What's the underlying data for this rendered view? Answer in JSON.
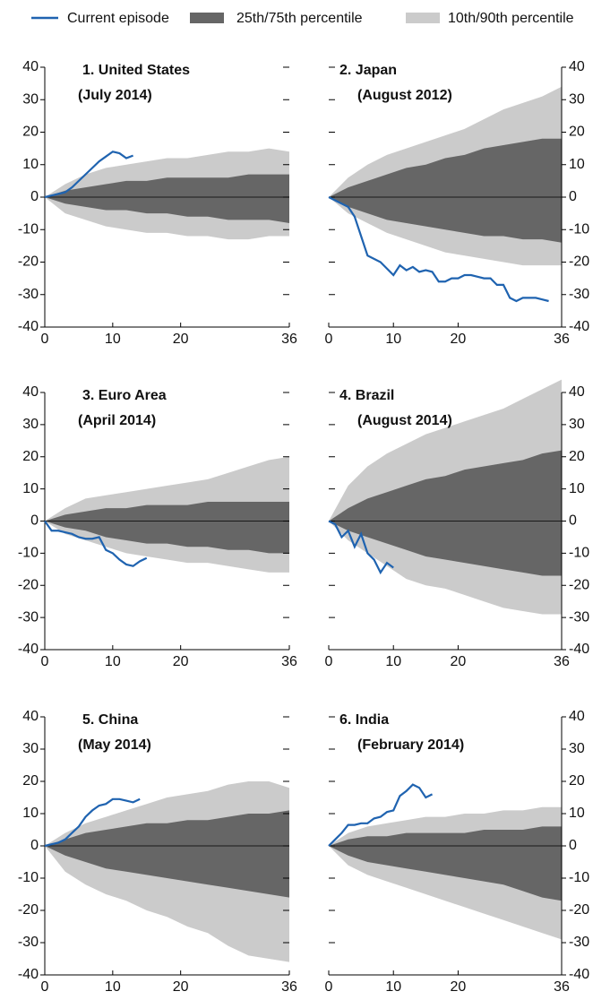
{
  "legend": [
    {
      "name": "Current episode",
      "color": "#1f63b0"
    },
    {
      "name": "25th/75th percentile",
      "color": "#666666"
    },
    {
      "name": "10th/90th percentile",
      "color": "#cbcbcb"
    }
  ],
  "chart_data": [
    {
      "type": "fan",
      "title": "1. United States",
      "subtitle": "(July 2014)",
      "y_axis_side": "left",
      "x": [
        0,
        1,
        2,
        3,
        4,
        5,
        6,
        7,
        8,
        9,
        10,
        11,
        12,
        13
      ],
      "series": [
        {
          "values": [
            0,
            0.5,
            1,
            1.5,
            3,
            5,
            7,
            9,
            11,
            12.5,
            14,
            13.5,
            12,
            12.8
          ]
        }
      ],
      "band_x": [
        0,
        3,
        6,
        9,
        12,
        15,
        18,
        21,
        24,
        27,
        30,
        33,
        36
      ],
      "bands": [
        {
          "upper": [
            0,
            2,
            3,
            4,
            5,
            5,
            6,
            6,
            6,
            6,
            7,
            7,
            7
          ],
          "lower": [
            0,
            -2,
            -3,
            -4,
            -4,
            -5,
            -5,
            -6,
            -6,
            -7,
            -7,
            -7,
            -8
          ]
        },
        {
          "upper": [
            0,
            4,
            7,
            9,
            10,
            11,
            12,
            12,
            13,
            14,
            14,
            15,
            14
          ],
          "lower": [
            0,
            -5,
            -7,
            -9,
            -10,
            -11,
            -11,
            -12,
            -12,
            -13,
            -13,
            -12,
            -12
          ]
        }
      ],
      "xlim": [
        0,
        36
      ],
      "xticks": [
        0,
        10,
        20,
        36
      ],
      "ylim": [
        -40,
        40
      ],
      "yticks": [
        -40,
        -30,
        -20,
        -10,
        0,
        10,
        20,
        30,
        40
      ]
    },
    {
      "type": "fan",
      "title": "2. Japan",
      "subtitle": "(August 2012)",
      "y_axis_side": "right",
      "x": [
        0,
        1,
        2,
        3,
        4,
        5,
        6,
        7,
        8,
        9,
        10,
        11,
        12,
        13,
        14,
        15,
        16,
        17,
        18,
        19,
        20,
        21,
        22,
        23,
        24,
        25,
        26,
        27,
        28,
        29,
        30,
        31,
        32,
        33,
        34
      ],
      "series": [
        {
          "values": [
            0,
            -1,
            -2,
            -3,
            -6,
            -12,
            -18,
            -19,
            -20,
            -22,
            -24,
            -21,
            -22.5,
            -21.5,
            -23,
            -22.5,
            -23,
            -26,
            -26,
            -25,
            -25,
            -24,
            -24,
            -24.5,
            -25,
            -25,
            -27,
            -27,
            -31,
            -32,
            -31,
            -31,
            -31,
            -31.5,
            -32
          ]
        }
      ],
      "band_x": [
        0,
        3,
        6,
        9,
        12,
        15,
        18,
        21,
        24,
        27,
        30,
        33,
        36
      ],
      "bands": [
        {
          "upper": [
            0,
            3,
            5,
            7,
            9,
            10,
            12,
            13,
            15,
            16,
            17,
            18,
            18
          ],
          "lower": [
            0,
            -3,
            -5,
            -7,
            -8,
            -9,
            -10,
            -11,
            -12,
            -12,
            -13,
            -13,
            -14
          ]
        },
        {
          "upper": [
            0,
            6,
            10,
            13,
            15,
            17,
            19,
            21,
            24,
            27,
            29,
            31,
            34
          ],
          "lower": [
            0,
            -5,
            -8,
            -11,
            -13,
            -15,
            -17,
            -18,
            -19,
            -20,
            -21,
            -21,
            -21
          ]
        }
      ],
      "xlim": [
        0,
        36
      ],
      "xticks": [
        0,
        10,
        20,
        36
      ],
      "ylim": [
        -40,
        40
      ],
      "yticks": [
        -40,
        -30,
        -20,
        -10,
        0,
        10,
        20,
        30,
        40
      ]
    },
    {
      "type": "fan",
      "title": "3. Euro Area",
      "subtitle": "(April 2014)",
      "y_axis_side": "left",
      "x": [
        0,
        1,
        2,
        3,
        4,
        5,
        6,
        7,
        8,
        9,
        10,
        11,
        12,
        13,
        14,
        15
      ],
      "series": [
        {
          "values": [
            0,
            -3,
            -3,
            -3.5,
            -4,
            -5,
            -5.5,
            -5.5,
            -5,
            -9,
            -10,
            -12,
            -13.5,
            -14,
            -12.5,
            -11.5
          ]
        }
      ],
      "band_x": [
        0,
        3,
        6,
        9,
        12,
        15,
        18,
        21,
        24,
        27,
        30,
        33,
        36
      ],
      "bands": [
        {
          "upper": [
            0,
            2,
            3,
            4,
            4,
            5,
            5,
            5,
            6,
            6,
            6,
            6,
            6
          ],
          "lower": [
            0,
            -2,
            -3,
            -5,
            -6,
            -7,
            -7,
            -8,
            -8,
            -9,
            -9,
            -10,
            -10
          ]
        },
        {
          "upper": [
            0,
            4,
            7,
            8,
            9,
            10,
            11,
            12,
            13,
            15,
            17,
            19,
            20
          ],
          "lower": [
            0,
            -4,
            -6,
            -8,
            -10,
            -11,
            -12,
            -13,
            -13,
            -14,
            -15,
            -16,
            -16
          ]
        }
      ],
      "xlim": [
        0,
        36
      ],
      "xticks": [
        0,
        10,
        20,
        36
      ],
      "ylim": [
        -40,
        40
      ],
      "yticks": [
        -40,
        -30,
        -20,
        -10,
        0,
        10,
        20,
        30,
        40
      ]
    },
    {
      "type": "fan",
      "title": "4. Brazil",
      "subtitle": "(August 2014)",
      "y_axis_side": "right",
      "x": [
        0,
        1,
        2,
        3,
        4,
        5,
        6,
        7,
        8,
        9,
        10
      ],
      "series": [
        {
          "values": [
            0,
            -1,
            -5,
            -3,
            -8,
            -4,
            -10,
            -12,
            -16,
            -13,
            -14.5
          ]
        }
      ],
      "band_x": [
        0,
        3,
        6,
        9,
        12,
        15,
        18,
        21,
        24,
        27,
        30,
        33,
        36
      ],
      "bands": [
        {
          "upper": [
            0,
            4,
            7,
            9,
            11,
            13,
            14,
            16,
            17,
            18,
            19,
            21,
            22
          ],
          "lower": [
            0,
            -3,
            -5,
            -7,
            -9,
            -11,
            -12,
            -13,
            -14,
            -15,
            -16,
            -17,
            -17
          ]
        },
        {
          "upper": [
            0,
            11,
            17,
            21,
            24,
            27,
            29,
            31,
            33,
            35,
            38,
            41,
            44
          ],
          "lower": [
            0,
            -6,
            -10,
            -14,
            -18,
            -20,
            -21,
            -23,
            -25,
            -27,
            -28,
            -29,
            -29
          ]
        }
      ],
      "xlim": [
        0,
        36
      ],
      "xticks": [
        0,
        10,
        20,
        36
      ],
      "ylim": [
        -40,
        40
      ],
      "yticks": [
        -40,
        -30,
        -20,
        -10,
        0,
        10,
        20,
        30,
        40
      ]
    },
    {
      "type": "fan",
      "title": "5. China",
      "subtitle": "(May 2014)",
      "y_axis_side": "left",
      "x": [
        0,
        1,
        2,
        3,
        4,
        5,
        6,
        7,
        8,
        9,
        10,
        11,
        12,
        13,
        14
      ],
      "series": [
        {
          "values": [
            0,
            0.5,
            1,
            2,
            4,
            6,
            9,
            11,
            12.5,
            13,
            14.5,
            14.5,
            14,
            13.5,
            14.5
          ]
        }
      ],
      "band_x": [
        0,
        3,
        6,
        9,
        12,
        15,
        18,
        21,
        24,
        27,
        30,
        33,
        36
      ],
      "bands": [
        {
          "upper": [
            0,
            2,
            4,
            5,
            6,
            7,
            7,
            8,
            8,
            9,
            10,
            10,
            11
          ],
          "lower": [
            0,
            -3,
            -5,
            -7,
            -8,
            -9,
            -10,
            -11,
            -12,
            -13,
            -14,
            -15,
            -16
          ]
        },
        {
          "upper": [
            0,
            4,
            7,
            9,
            11,
            13,
            15,
            16,
            17,
            19,
            20,
            20,
            18
          ],
          "lower": [
            0,
            -8,
            -12,
            -15,
            -17,
            -20,
            -22,
            -25,
            -27,
            -31,
            -34,
            -35,
            -36
          ]
        }
      ],
      "xlim": [
        0,
        36
      ],
      "xticks": [
        0,
        10,
        20,
        36
      ],
      "ylim": [
        -40,
        40
      ],
      "yticks": [
        -40,
        -30,
        -20,
        -10,
        0,
        10,
        20,
        30,
        40
      ]
    },
    {
      "type": "fan",
      "title": "6. India",
      "subtitle": "(February 2014)",
      "y_axis_side": "right",
      "x": [
        0,
        1,
        2,
        3,
        4,
        5,
        6,
        7,
        8,
        9,
        10,
        11,
        12,
        13,
        14,
        15,
        16
      ],
      "series": [
        {
          "values": [
            0,
            2,
            4,
            6.5,
            6.5,
            7,
            7,
            8.5,
            9,
            10.5,
            11,
            15.5,
            17,
            19,
            18,
            15,
            16
          ]
        }
      ],
      "band_x": [
        0,
        3,
        6,
        9,
        12,
        15,
        18,
        21,
        24,
        27,
        30,
        33,
        36
      ],
      "bands": [
        {
          "upper": [
            0,
            2,
            3,
            3,
            4,
            4,
            4,
            4,
            5,
            5,
            5,
            6,
            6
          ],
          "lower": [
            0,
            -3,
            -5,
            -6,
            -7,
            -8,
            -9,
            -10,
            -11,
            -12,
            -14,
            -16,
            -17
          ]
        },
        {
          "upper": [
            0,
            4,
            6,
            7,
            8,
            9,
            9,
            10,
            10,
            11,
            11,
            12,
            12
          ],
          "lower": [
            0,
            -6,
            -9,
            -11,
            -13,
            -15,
            -17,
            -19,
            -21,
            -23,
            -25,
            -27,
            -29
          ]
        }
      ],
      "xlim": [
        0,
        36
      ],
      "xticks": [
        0,
        10,
        20,
        36
      ],
      "ylim": [
        -40,
        40
      ],
      "yticks": [
        -40,
        -30,
        -20,
        -10,
        0,
        10,
        20,
        30,
        40
      ]
    }
  ]
}
